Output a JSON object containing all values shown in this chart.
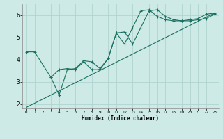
{
  "xlabel": "Humidex (Indice chaleur)",
  "bg_color": "#ceeae7",
  "grid_color": "#b0d4d0",
  "line_color": "#1a7060",
  "xlim": [
    -0.5,
    23.5
  ],
  "ylim": [
    1.8,
    6.5
  ],
  "xticks": [
    0,
    1,
    2,
    3,
    4,
    5,
    6,
    7,
    8,
    9,
    10,
    11,
    12,
    13,
    14,
    15,
    16,
    17,
    18,
    19,
    20,
    21,
    22,
    23
  ],
  "yticks": [
    2,
    3,
    4,
    5,
    6
  ],
  "line1_x": [
    0,
    1,
    3,
    4,
    5,
    6,
    7,
    8,
    9,
    10,
    11,
    12,
    13,
    14,
    15,
    16,
    17,
    18,
    19,
    20,
    21,
    22,
    23
  ],
  "line1_y": [
    4.35,
    4.35,
    3.2,
    2.4,
    3.55,
    3.6,
    3.95,
    3.9,
    3.6,
    4.05,
    5.2,
    5.25,
    4.7,
    5.45,
    6.2,
    6.25,
    5.95,
    5.8,
    5.75,
    5.75,
    5.8,
    5.85,
    6.05
  ],
  "line2_x": [
    3,
    4,
    5,
    6,
    7,
    8,
    9,
    10,
    11,
    12,
    13,
    14,
    15,
    16,
    17,
    18,
    19,
    20,
    21,
    22,
    23
  ],
  "line2_y": [
    3.2,
    3.55,
    3.6,
    3.55,
    3.9,
    3.55,
    3.55,
    4.05,
    5.2,
    4.7,
    5.45,
    6.2,
    6.25,
    5.95,
    5.8,
    5.75,
    5.75,
    5.8,
    5.85,
    6.05,
    6.1
  ],
  "line3_x": [
    0,
    23
  ],
  "line3_y": [
    1.85,
    6.1
  ]
}
